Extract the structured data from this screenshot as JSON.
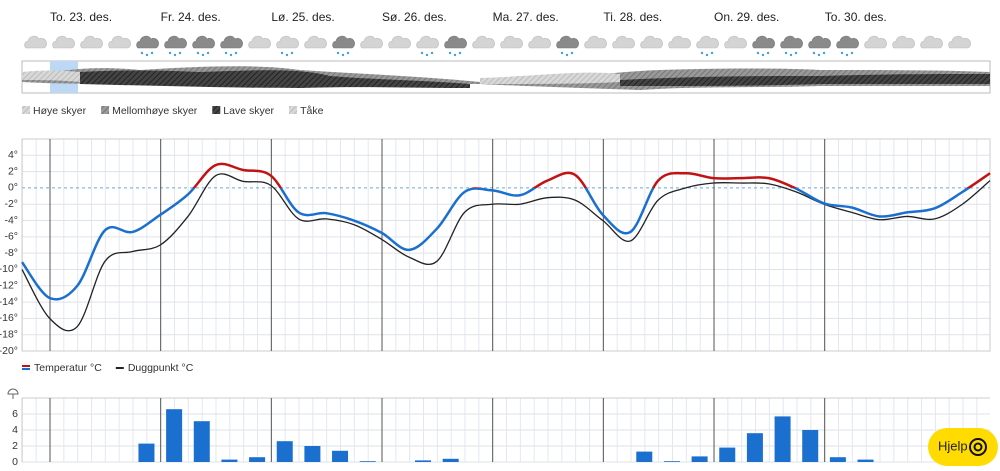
{
  "days": [
    "To. 23. des.",
    "Fr. 24. des.",
    "Lø. 25. des.",
    "Sø. 26. des.",
    "Ma. 27. des.",
    "Ti. 28. des.",
    "On. 29. des.",
    "To. 30. des."
  ],
  "cloud_legend": [
    "Høye skyer",
    "Mellomhøye skyer",
    "Lave skyer",
    "Tåke"
  ],
  "help_button": "Hjelp",
  "chart_data": [
    {
      "type": "line",
      "series": [
        {
          "name": "Temperatur °C",
          "color": "#1b6fcf",
          "warm_color": "#c21212",
          "values": [
            -9.1,
            -13.5,
            -12,
            -5.2,
            -5.4,
            -3.3,
            -0.8,
            2.8,
            2.2,
            1.5,
            -3,
            -3.1,
            -4,
            -5.5,
            -7.6,
            -5,
            -0.5,
            -0.3,
            -0.9,
            0.9,
            1.6,
            -3.3,
            -5.4,
            0.9,
            1.8,
            1.2,
            1.2,
            1.2,
            -0.1,
            -1.9,
            -2.4,
            -3.5,
            -3,
            -2.5,
            -0.5,
            1.8
          ]
        },
        {
          "name": "Duggpunkt °C",
          "color": "#222222",
          "values": [
            -10,
            -16,
            -17,
            -9,
            -7.8,
            -7,
            -3.5,
            1.5,
            0.8,
            0.3,
            -3.8,
            -3.8,
            -4.5,
            -6.3,
            -8.5,
            -9,
            -3,
            -2,
            -2,
            -1.2,
            -1.5,
            -4,
            -6.5,
            -1.5,
            0,
            0.6,
            0.6,
            0.5,
            -0.5,
            -2,
            -3,
            -3.9,
            -3.5,
            -3.8,
            -2,
            0.9
          ]
        }
      ],
      "ylim": [
        -20,
        6
      ],
      "yticks": [
        {
          "value": 4,
          "label": "4°"
        },
        {
          "value": 2,
          "label": "2°"
        },
        {
          "value": 0,
          "label": "0°"
        },
        {
          "value": -2,
          "label": "-2°"
        },
        {
          "value": -4,
          "label": "-4°"
        },
        {
          "value": -6,
          "label": "-6°"
        },
        {
          "value": -8,
          "label": "-8°"
        },
        {
          "value": -10,
          "label": "-10°"
        },
        {
          "value": -12,
          "label": "-12°"
        },
        {
          "value": -14,
          "label": "-14°"
        },
        {
          "value": -16,
          "label": "-16°"
        },
        {
          "value": -18,
          "label": "-18°"
        },
        {
          "value": -20,
          "label": "-20°"
        }
      ],
      "grid": true,
      "zero_line": true
    },
    {
      "type": "bar",
      "color": "#1b6fcf",
      "values": [
        0,
        0,
        0,
        0,
        2.3,
        6.6,
        5.1,
        0.3,
        0.6,
        2.6,
        2.0,
        1.4,
        0.1,
        0,
        0.2,
        0.4,
        0,
        0,
        0,
        0,
        0,
        0,
        1.3,
        0.1,
        0.7,
        1.8,
        3.6,
        5.7,
        4.0,
        0.6,
        0.3,
        0,
        0,
        0,
        0
      ],
      "ylim": [
        0,
        8
      ],
      "yticks": [
        6,
        4,
        2,
        0
      ],
      "grid": true
    }
  ]
}
